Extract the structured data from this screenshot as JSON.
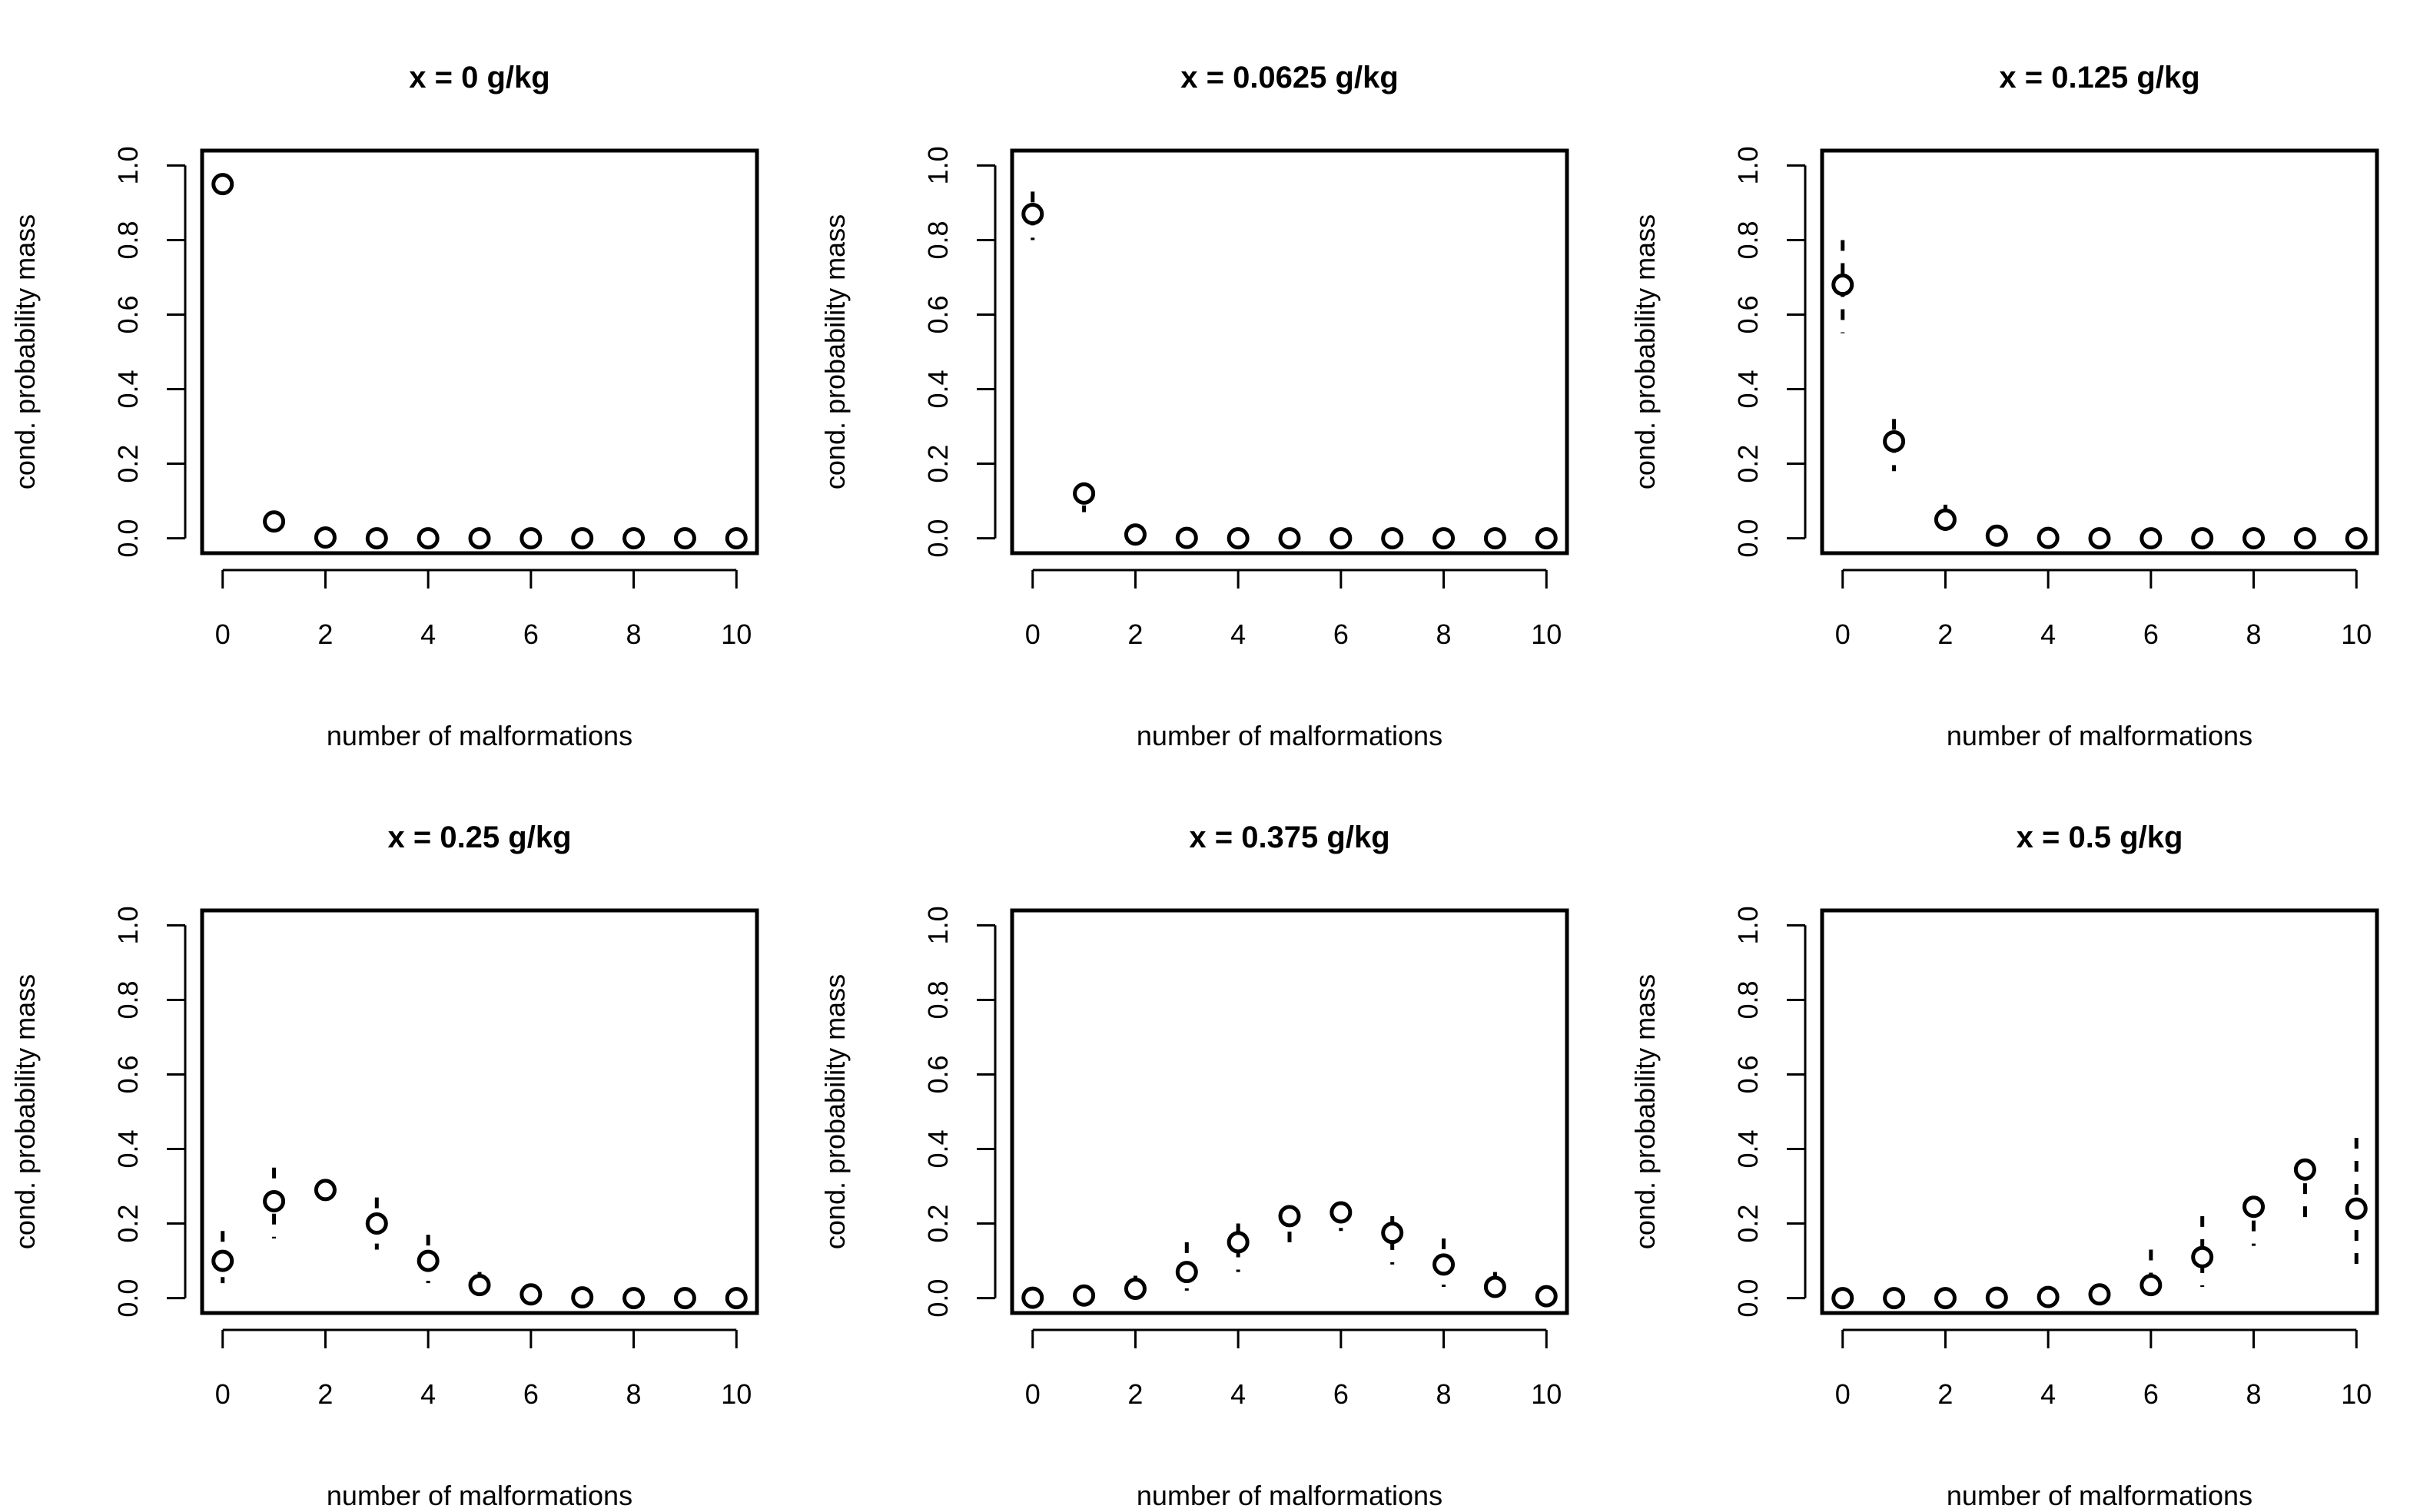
{
  "chart_data": [
    {
      "type": "scatter",
      "title": "x = 0 g/kg",
      "xlabel": "number of malformations",
      "ylabel": "cond. probability mass",
      "xlim": [
        -0.4,
        10.4
      ],
      "ylim": [
        -0.04,
        1.04
      ],
      "xticks": [
        0,
        2,
        4,
        6,
        8,
        10
      ],
      "yticks": [
        0.0,
        0.2,
        0.4,
        0.6,
        0.8,
        1.0
      ],
      "x": [
        0,
        1,
        2,
        3,
        4,
        5,
        6,
        7,
        8,
        9,
        10
      ],
      "values": [
        0.95,
        0.045,
        0.002,
        0,
        0,
        0,
        0,
        0,
        0,
        0,
        0
      ],
      "lower": [
        0.92,
        0.03,
        0,
        0,
        0,
        0,
        0,
        0,
        0,
        0,
        0
      ],
      "upper": [
        0.97,
        0.06,
        0.005,
        0,
        0,
        0,
        0,
        0,
        0,
        0,
        0
      ]
    },
    {
      "type": "scatter",
      "title": "x = 0.0625 g/kg",
      "xlabel": "number of malformations",
      "ylabel": "cond. probability mass",
      "xlim": [
        -0.4,
        10.4
      ],
      "ylim": [
        -0.04,
        1.04
      ],
      "xticks": [
        0,
        2,
        4,
        6,
        8,
        10
      ],
      "yticks": [
        0.0,
        0.2,
        0.4,
        0.6,
        0.8,
        1.0
      ],
      "x": [
        0,
        1,
        2,
        3,
        4,
        5,
        6,
        7,
        8,
        9,
        10
      ],
      "values": [
        0.87,
        0.12,
        0.01,
        0.001,
        0,
        0,
        0,
        0,
        0,
        0,
        0
      ],
      "lower": [
        0.8,
        0.07,
        0.003,
        0,
        0,
        0,
        0,
        0,
        0,
        0,
        0
      ],
      "upper": [
        0.93,
        0.15,
        0.02,
        0.003,
        0,
        0,
        0,
        0,
        0,
        0,
        0
      ]
    },
    {
      "type": "scatter",
      "title": "x = 0.125 g/kg",
      "xlabel": "number of malformations",
      "ylabel": "cond. probability mass",
      "xlim": [
        -0.4,
        10.4
      ],
      "ylim": [
        -0.04,
        1.04
      ],
      "xticks": [
        0,
        2,
        4,
        6,
        8,
        10
      ],
      "yticks": [
        0.0,
        0.2,
        0.4,
        0.6,
        0.8,
        1.0
      ],
      "x": [
        0,
        1,
        2,
        3,
        4,
        5,
        6,
        7,
        8,
        9,
        10
      ],
      "values": [
        0.68,
        0.26,
        0.05,
        0.007,
        0.001,
        0,
        0,
        0,
        0,
        0,
        0
      ],
      "lower": [
        0.55,
        0.18,
        0.02,
        0.002,
        0,
        0,
        0,
        0,
        0,
        0,
        0
      ],
      "upper": [
        0.8,
        0.32,
        0.09,
        0.015,
        0.003,
        0,
        0,
        0,
        0,
        0,
        0
      ]
    },
    {
      "type": "scatter",
      "title": "x = 0.25 g/kg",
      "xlabel": "number of malformations",
      "ylabel": "cond. probability mass",
      "xlim": [
        -0.4,
        10.4
      ],
      "ylim": [
        -0.04,
        1.04
      ],
      "xticks": [
        0,
        2,
        4,
        6,
        8,
        10
      ],
      "yticks": [
        0.0,
        0.2,
        0.4,
        0.6,
        0.8,
        1.0
      ],
      "x": [
        0,
        1,
        2,
        3,
        4,
        5,
        6,
        7,
        8,
        9,
        10
      ],
      "values": [
        0.1,
        0.26,
        0.29,
        0.2,
        0.1,
        0.035,
        0.01,
        0.002,
        0,
        0,
        0
      ],
      "lower": [
        0.04,
        0.16,
        0.26,
        0.13,
        0.04,
        0.01,
        0.002,
        0,
        0,
        0,
        0
      ],
      "upper": [
        0.18,
        0.35,
        0.31,
        0.27,
        0.17,
        0.07,
        0.02,
        0.005,
        0,
        0,
        0
      ]
    },
    {
      "type": "scatter",
      "title": "x = 0.375 g/kg",
      "xlabel": "number of malformations",
      "ylabel": "cond. probability mass",
      "xlim": [
        -0.4,
        10.4
      ],
      "ylim": [
        -0.04,
        1.04
      ],
      "xticks": [
        0,
        2,
        4,
        6,
        8,
        10
      ],
      "yticks": [
        0.0,
        0.2,
        0.4,
        0.6,
        0.8,
        1.0
      ],
      "x": [
        0,
        1,
        2,
        3,
        4,
        5,
        6,
        7,
        8,
        9,
        10
      ],
      "values": [
        0.001,
        0.007,
        0.025,
        0.07,
        0.15,
        0.22,
        0.23,
        0.175,
        0.09,
        0.03,
        0.005
      ],
      "lower": [
        0,
        0.002,
        0.008,
        0.02,
        0.07,
        0.15,
        0.18,
        0.09,
        0.03,
        0.005,
        0
      ],
      "upper": [
        0.003,
        0.015,
        0.06,
        0.15,
        0.2,
        0.24,
        0.25,
        0.22,
        0.16,
        0.07,
        0.015
      ]
    },
    {
      "type": "scatter",
      "title": "x = 0.5 g/kg",
      "xlabel": "number of malformations",
      "ylabel": "cond. probability mass",
      "xlim": [
        -0.4,
        10.4
      ],
      "ylim": [
        -0.04,
        1.04
      ],
      "xticks": [
        0,
        2,
        4,
        6,
        8,
        10
      ],
      "yticks": [
        0.0,
        0.2,
        0.4,
        0.6,
        0.8,
        1.0
      ],
      "x": [
        0,
        1,
        2,
        3,
        4,
        5,
        6,
        7,
        8,
        9,
        10
      ],
      "values": [
        0,
        0,
        0,
        0.001,
        0.003,
        0.01,
        0.035,
        0.11,
        0.245,
        0.345,
        0.24
      ],
      "lower": [
        0,
        0,
        0,
        0,
        0,
        0.003,
        0.01,
        0.03,
        0.14,
        0.2,
        0.06
      ],
      "upper": [
        0,
        0,
        0.001,
        0.003,
        0.01,
        0.02,
        0.13,
        0.22,
        0.27,
        0.37,
        0.43
      ]
    }
  ]
}
